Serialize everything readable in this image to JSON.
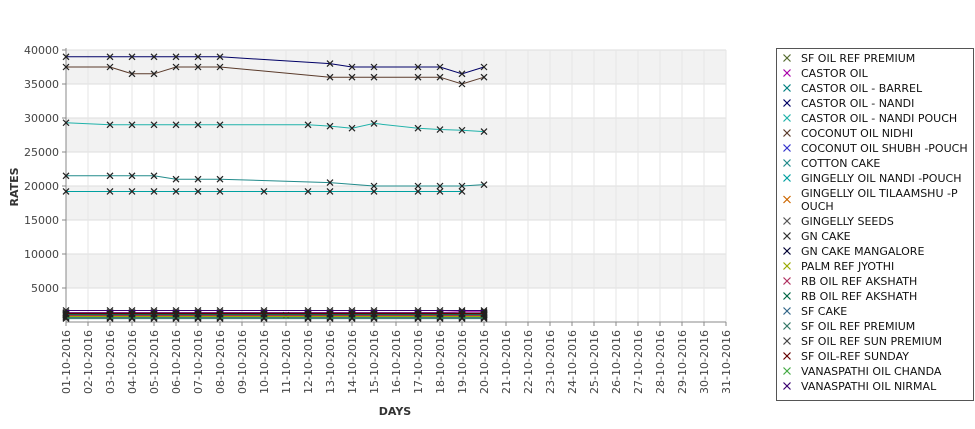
{
  "chart_data": {
    "type": "line",
    "title": "",
    "xlabel": "DAYS",
    "ylabel": "RATES",
    "ylim": [
      0,
      40000
    ],
    "yticks": [
      5000,
      10000,
      15000,
      20000,
      25000,
      30000,
      35000,
      40000
    ],
    "grid": true,
    "legend_position": "right",
    "categories": [
      "01-10-2016",
      "02-10-2016",
      "03-10-2016",
      "04-10-2016",
      "05-10-2016",
      "06-10-2016",
      "07-10-2016",
      "08-10-2016",
      "09-10-2016",
      "10-10-2016",
      "11-10-2016",
      "12-10-2016",
      "13-10-2016",
      "14-10-2016",
      "15-10-2016",
      "16-10-2016",
      "17-10-2016",
      "18-10-2016",
      "19-10-2016",
      "20-10-2016",
      "21-10-2016",
      "22-10-2016",
      "23-10-2016",
      "24-10-2016",
      "25-10-2016",
      "26-10-2016",
      "27-10-2016",
      "28-10-2016",
      "29-10-2016",
      "30-10-2016",
      "31-10-2016"
    ],
    "series": [
      {
        "name": " SF OIL REF PREMIUM",
        "color": "#556b2f",
        "values": [
          1200,
          null,
          1200,
          1200,
          1200,
          1200,
          1200,
          1200,
          null,
          1200,
          null,
          1200,
          1200,
          1200,
          1200,
          null,
          1200,
          1200,
          1200,
          1200,
          null,
          null,
          null,
          null,
          null,
          null,
          null,
          null,
          null,
          null,
          null
        ]
      },
      {
        "name": "CASTOR OIL",
        "color": "#aa00aa",
        "values": [
          1400,
          null,
          1400,
          1400,
          1400,
          1400,
          1400,
          1400,
          null,
          1400,
          null,
          1400,
          1400,
          1400,
          1400,
          null,
          1400,
          1400,
          1500,
          1500,
          null,
          null,
          null,
          null,
          null,
          null,
          null,
          null,
          null,
          null,
          null
        ]
      },
      {
        "name": "CASTOR OIL - BARREL",
        "color": "#008080",
        "values": [
          1300,
          null,
          1300,
          1300,
          1300,
          1300,
          1300,
          1300,
          null,
          1300,
          null,
          1300,
          1300,
          1300,
          1300,
          null,
          1300,
          1300,
          1300,
          1300,
          null,
          null,
          null,
          null,
          null,
          null,
          null,
          null,
          null,
          null,
          null
        ]
      },
      {
        "name": "CASTOR OIL - NANDI",
        "color": "#000066",
        "values": [
          39000,
          null,
          39000,
          39000,
          39000,
          39000,
          39000,
          39000,
          null,
          null,
          null,
          null,
          38000,
          37500,
          37500,
          null,
          37500,
          37500,
          36500,
          37500,
          null,
          null,
          null,
          null,
          null,
          null,
          null,
          null,
          null,
          null,
          null
        ]
      },
      {
        "name": "CASTOR OIL - NANDI POUCH",
        "color": "#20b2aa",
        "values": [
          29300,
          null,
          29000,
          29000,
          29000,
          29000,
          29000,
          29000,
          null,
          null,
          null,
          29000,
          28800,
          28500,
          29200,
          null,
          28500,
          28300,
          28200,
          28000,
          null,
          null,
          null,
          null,
          null,
          null,
          null,
          null,
          null,
          null,
          null
        ]
      },
      {
        "name": "COCONUT OIL NIDHI",
        "color": "#5a3a2a",
        "values": [
          37500,
          null,
          37500,
          36500,
          36500,
          37500,
          37500,
          37500,
          null,
          null,
          null,
          null,
          36000,
          36000,
          36000,
          null,
          36000,
          36000,
          35000,
          36000,
          null,
          null,
          null,
          null,
          null,
          null,
          null,
          null,
          null,
          null,
          null
        ]
      },
      {
        "name": "COCONUT OIL SHUBH -POUCH",
        "color": "#3333cc",
        "values": [
          700,
          null,
          700,
          700,
          700,
          700,
          700,
          700,
          null,
          700,
          null,
          700,
          700,
          700,
          700,
          null,
          700,
          700,
          700,
          700,
          null,
          null,
          null,
          null,
          null,
          null,
          null,
          null,
          null,
          null,
          null
        ]
      },
      {
        "name": "COTTON CAKE",
        "color": "#228b8b",
        "values": [
          21500,
          null,
          21500,
          21500,
          21500,
          21000,
          21000,
          21000,
          null,
          null,
          null,
          null,
          20500,
          null,
          20000,
          null,
          20000,
          20000,
          20000,
          20200,
          null,
          null,
          null,
          null,
          null,
          null,
          null,
          null,
          null,
          null,
          null
        ]
      },
      {
        "name": "GINGELLY OIL NANDI -POUCH",
        "color": "#00a0a0",
        "values": [
          19200,
          null,
          19200,
          19200,
          19200,
          19200,
          19200,
          19200,
          null,
          19200,
          null,
          19200,
          19200,
          null,
          19200,
          null,
          19200,
          19200,
          19200,
          null,
          null,
          null,
          null,
          null,
          null,
          null,
          null,
          null,
          null,
          null,
          null
        ]
      },
      {
        "name": "GINGELLY OIL TILAAMSHU -P OUCH",
        "color": "#cc6600",
        "values": [
          900,
          null,
          900,
          900,
          900,
          900,
          900,
          900,
          null,
          900,
          null,
          900,
          900,
          900,
          900,
          null,
          900,
          900,
          900,
          900,
          null,
          null,
          null,
          null,
          null,
          null,
          null,
          null,
          null,
          null,
          null
        ]
      },
      {
        "name": "GINGELLY SEEDS",
        "color": "#555555",
        "values": [
          null,
          null,
          null,
          null,
          null,
          null,
          null,
          null,
          null,
          null,
          null,
          null,
          null,
          null,
          null,
          null,
          null,
          null,
          null,
          null,
          null,
          null,
          null,
          null,
          null,
          null,
          null,
          null,
          null,
          null,
          null
        ]
      },
      {
        "name": "GN CAKE",
        "color": "#2f2f2f",
        "values": [
          1000,
          null,
          1000,
          1000,
          1000,
          1000,
          1000,
          1000,
          null,
          1000,
          1000,
          1000,
          1000,
          1000,
          1000,
          null,
          1000,
          1000,
          1000,
          1000,
          null,
          null,
          null,
          null,
          null,
          null,
          null,
          null,
          null,
          null,
          null
        ]
      },
      {
        "name": "GN CAKE MANGALORE",
        "color": "#000033",
        "values": [
          1100,
          null,
          1100,
          1100,
          1100,
          1100,
          1100,
          1100,
          null,
          1100,
          null,
          1100,
          1100,
          1100,
          1100,
          null,
          1100,
          1100,
          1100,
          1100,
          null,
          null,
          null,
          null,
          null,
          null,
          null,
          null,
          null,
          null,
          null
        ]
      },
      {
        "name": "PALM REF JYOTHI",
        "color": "#99aa00",
        "values": [
          800,
          null,
          800,
          800,
          800,
          800,
          800,
          800,
          null,
          800,
          null,
          800,
          800,
          800,
          800,
          null,
          800,
          800,
          800,
          800,
          null,
          null,
          null,
          null,
          null,
          null,
          null,
          null,
          null,
          null,
          null
        ]
      },
      {
        "name": "RB OIL REF  AKSHATH",
        "color": "#b03060",
        "values": [
          1000,
          null,
          1000,
          1000,
          1000,
          1000,
          1000,
          1000,
          null,
          1000,
          null,
          1000,
          1000,
          1000,
          1000,
          null,
          1000,
          1000,
          1000,
          1000,
          null,
          null,
          null,
          null,
          null,
          null,
          null,
          null,
          null,
          null,
          null
        ]
      },
      {
        "name": "RB OIL REF AKSHATH",
        "color": "#006644",
        "values": [
          1100,
          null,
          1100,
          1100,
          1100,
          1100,
          1100,
          1100,
          null,
          1100,
          null,
          1100,
          1100,
          1100,
          1100,
          null,
          1100,
          1100,
          1100,
          1100,
          null,
          null,
          null,
          null,
          null,
          null,
          null,
          null,
          null,
          null,
          null
        ]
      },
      {
        "name": "SF CAKE",
        "color": "#336688",
        "values": [
          500,
          null,
          500,
          500,
          500,
          500,
          500,
          500,
          null,
          500,
          null,
          500,
          500,
          500,
          500,
          null,
          500,
          500,
          500,
          500,
          null,
          null,
          null,
          null,
          null,
          null,
          null,
          null,
          null,
          null,
          null
        ]
      },
      {
        "name": "SF OIL REF PREMIUM",
        "color": "#337766",
        "values": [
          1200,
          null,
          1200,
          1200,
          1200,
          1200,
          1200,
          1200,
          null,
          1200,
          null,
          1200,
          1200,
          1200,
          1200,
          null,
          1200,
          1200,
          1200,
          1200,
          null,
          null,
          null,
          null,
          null,
          null,
          null,
          null,
          null,
          null,
          null
        ]
      },
      {
        "name": "SF OIL REF SUN PREMIUM",
        "color": "#444444",
        "values": [
          1300,
          null,
          1300,
          1300,
          1300,
          1300,
          1300,
          1300,
          null,
          1300,
          null,
          1300,
          1300,
          1300,
          1300,
          null,
          1300,
          1300,
          1300,
          1300,
          null,
          null,
          null,
          null,
          null,
          null,
          null,
          null,
          null,
          null,
          null
        ]
      },
      {
        "name": "SF OIL-REF SUNDAY",
        "color": "#660000",
        "values": [
          1250,
          null,
          1250,
          1250,
          1250,
          1250,
          1250,
          1250,
          null,
          1250,
          null,
          1250,
          1250,
          1250,
          1250,
          null,
          1250,
          1250,
          1250,
          1250,
          null,
          null,
          null,
          null,
          null,
          null,
          null,
          null,
          null,
          null,
          null
        ]
      },
      {
        "name": "VANASPATHI OIL CHANDA",
        "color": "#44aa44",
        "values": [
          600,
          null,
          600,
          600,
          600,
          600,
          600,
          600,
          null,
          600,
          null,
          600,
          600,
          600,
          600,
          null,
          600,
          600,
          600,
          600,
          null,
          null,
          null,
          null,
          null,
          null,
          null,
          null,
          null,
          null,
          null
        ]
      },
      {
        "name": "VANASPATHI OIL NIRMAL",
        "color": "#3a0070",
        "values": [
          1700,
          null,
          1700,
          1700,
          1700,
          1700,
          1700,
          1700,
          null,
          1700,
          null,
          1700,
          1700,
          1700,
          1700,
          null,
          1700,
          1700,
          1700,
          1700,
          null,
          null,
          null,
          null,
          null,
          null,
          null,
          null,
          null,
          null,
          null
        ]
      }
    ]
  }
}
